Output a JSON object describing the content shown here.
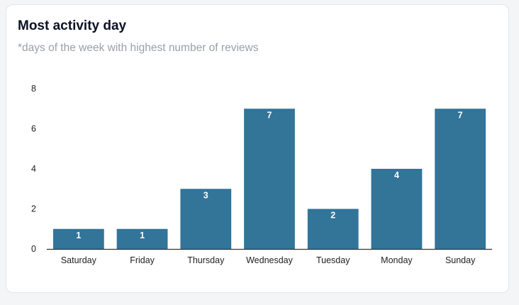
{
  "card": {
    "title": "Most activity day",
    "subtitle": "*days of the week with highest number of reviews"
  },
  "colors": {
    "bar": "#337499",
    "axis": "#333333",
    "label": "#ffffff"
  },
  "chart_data": {
    "type": "bar",
    "title": "Most activity day",
    "subtitle": "*days of the week with highest number of reviews",
    "categories": [
      "Saturday",
      "Friday",
      "Thursday",
      "Wednesday",
      "Tuesday",
      "Monday",
      "Sunday"
    ],
    "values": [
      1,
      1,
      3,
      7,
      2,
      4,
      7
    ],
    "xlabel": "",
    "ylabel": "",
    "ylim": [
      0,
      8
    ],
    "yticks": [
      0,
      2,
      4,
      6,
      8
    ],
    "grid": false,
    "data_labels": true
  }
}
